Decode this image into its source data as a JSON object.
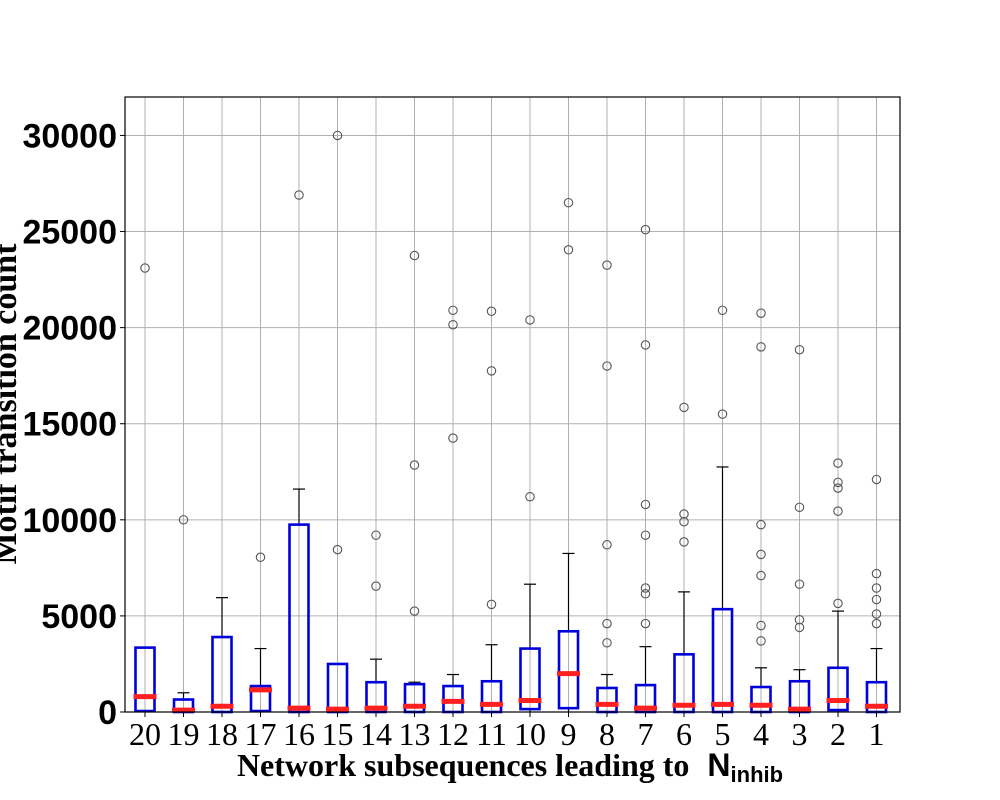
{
  "chart_data": {
    "type": "box",
    "xlabel": "Network subsequences leading to",
    "xlabel_symbol": "N",
    "xlabel_symbol_sub": "inhib",
    "ylabel": "Motif transition count",
    "ylim": [
      0,
      32000
    ],
    "yticks": [
      0,
      5000,
      10000,
      15000,
      20000,
      25000,
      30000
    ],
    "grid": true,
    "colors": {
      "box": "#0000dd",
      "median": "#ff2020",
      "whisker": "#000000",
      "outlier": "#555555",
      "grid": "#b0b0b0"
    },
    "categories": [
      "20",
      "19",
      "18",
      "17",
      "16",
      "15",
      "14",
      "13",
      "12",
      "11",
      "10",
      "9",
      "8",
      "7",
      "6",
      "5",
      "4",
      "3",
      "2",
      "1"
    ],
    "boxes": [
      {
        "q1": 50,
        "median": 800,
        "q3": 3350,
        "whislo": 0,
        "whishi": 3350,
        "fliers": [
          23100
        ]
      },
      {
        "q1": 0,
        "median": 100,
        "q3": 650,
        "whislo": 0,
        "whishi": 1000,
        "fliers": [
          10000
        ]
      },
      {
        "q1": 0,
        "median": 300,
        "q3": 3900,
        "whislo": 0,
        "whishi": 5950,
        "fliers": []
      },
      {
        "q1": 50,
        "median": 1150,
        "q3": 1350,
        "whislo": 0,
        "whishi": 3300,
        "fliers": [
          8050
        ]
      },
      {
        "q1": 0,
        "median": 200,
        "q3": 9750,
        "whislo": 0,
        "whishi": 11600,
        "fliers": [
          26900
        ]
      },
      {
        "q1": 0,
        "median": 150,
        "q3": 2500,
        "whislo": 0,
        "whishi": 2500,
        "fliers": [
          8450,
          30000
        ]
      },
      {
        "q1": 0,
        "median": 200,
        "q3": 1550,
        "whislo": 0,
        "whishi": 2750,
        "fliers": [
          6550,
          9200
        ]
      },
      {
        "q1": 0,
        "median": 300,
        "q3": 1450,
        "whislo": 0,
        "whishi": 1550,
        "fliers": [
          5250,
          12850,
          23750
        ]
      },
      {
        "q1": 0,
        "median": 550,
        "q3": 1350,
        "whislo": 0,
        "whishi": 1950,
        "fliers": [
          14250,
          20150,
          20900
        ]
      },
      {
        "q1": 0,
        "median": 400,
        "q3": 1600,
        "whislo": 0,
        "whishi": 3500,
        "fliers": [
          5600,
          17750,
          20850
        ]
      },
      {
        "q1": 150,
        "median": 600,
        "q3": 3300,
        "whislo": 0,
        "whishi": 6650,
        "fliers": [
          11200,
          20400
        ]
      },
      {
        "q1": 200,
        "median": 2000,
        "q3": 4200,
        "whislo": 0,
        "whishi": 8250,
        "fliers": [
          24050,
          26500
        ]
      },
      {
        "q1": 0,
        "median": 400,
        "q3": 1250,
        "whislo": 0,
        "whishi": 1950,
        "fliers": [
          3600,
          4600,
          8700,
          18000,
          23250
        ]
      },
      {
        "q1": 0,
        "median": 200,
        "q3": 1400,
        "whislo": 0,
        "whishi": 3400,
        "fliers": [
          4600,
          6150,
          6450,
          9200,
          10800,
          19100,
          25100
        ]
      },
      {
        "q1": 0,
        "median": 350,
        "q3": 3000,
        "whislo": 0,
        "whishi": 6250,
        "fliers": [
          8850,
          9900,
          10300,
          15850
        ]
      },
      {
        "q1": 0,
        "median": 400,
        "q3": 5350,
        "whislo": 0,
        "whishi": 12750,
        "fliers": [
          15500,
          20900
        ]
      },
      {
        "q1": 0,
        "median": 350,
        "q3": 1300,
        "whislo": 0,
        "whishi": 2300,
        "fliers": [
          3700,
          4500,
          7100,
          8200,
          9750,
          19000,
          20750
        ]
      },
      {
        "q1": 0,
        "median": 150,
        "q3": 1600,
        "whislo": 0,
        "whishi": 2200,
        "fliers": [
          4400,
          4800,
          6650,
          10650,
          18850
        ]
      },
      {
        "q1": 100,
        "median": 600,
        "q3": 2300,
        "whislo": 0,
        "whishi": 5250,
        "fliers": [
          5650,
          10450,
          11650,
          11950,
          12950
        ]
      },
      {
        "q1": 0,
        "median": 300,
        "q3": 1550,
        "whislo": 0,
        "whishi": 3300,
        "fliers": [
          4600,
          5100,
          5850,
          6450,
          7200,
          12100
        ]
      }
    ]
  }
}
